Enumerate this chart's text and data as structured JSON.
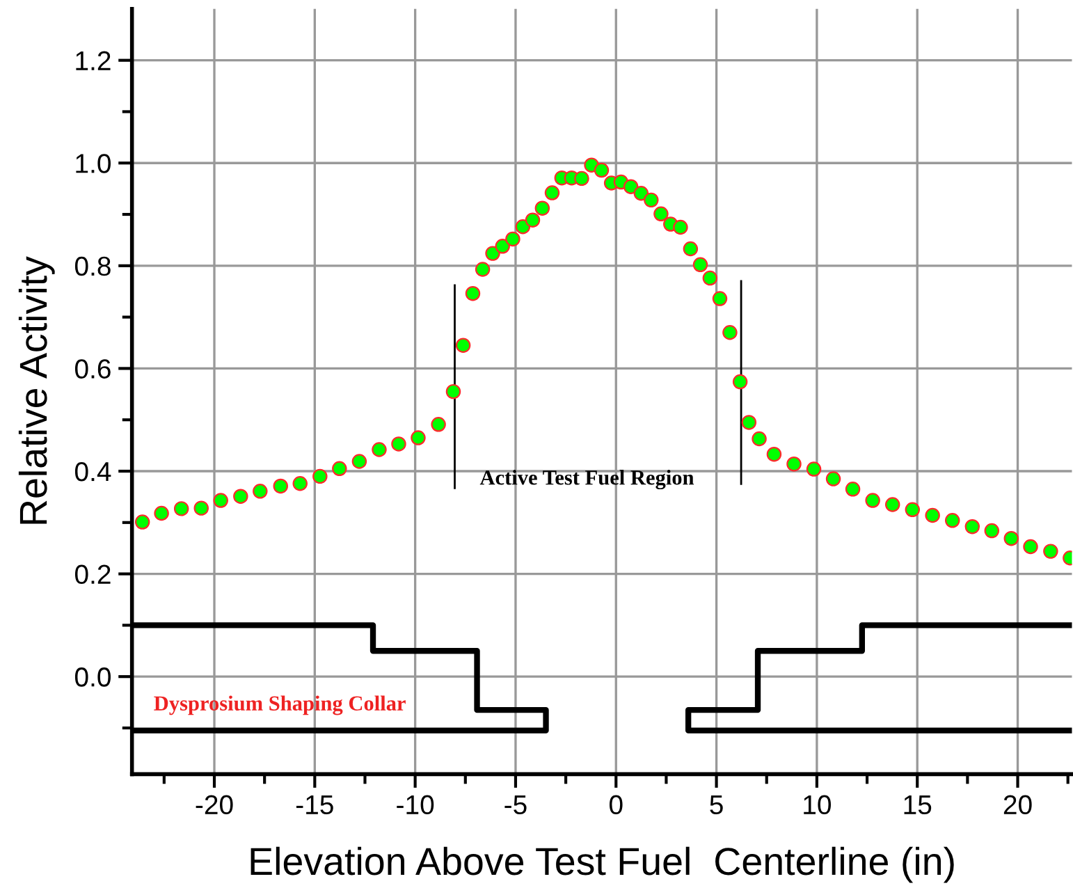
{
  "chart_data": {
    "type": "scatter",
    "xlabel": "Elevation Above Test Fuel  Centerline (in)",
    "ylabel": "Relative Activity",
    "xlim": [
      -24.1,
      22.7
    ],
    "ylim": [
      -0.19,
      1.3
    ],
    "xticks": [
      {
        "value": -22.5,
        "label": null
      },
      -20,
      {
        "value": -17.5,
        "label": null
      },
      -15,
      {
        "value": -12.5,
        "label": null
      },
      -10,
      {
        "value": -7.5,
        "label": null
      },
      -5,
      {
        "value": -2.5,
        "label": null
      },
      0,
      {
        "value": 2.5,
        "label": null
      },
      5,
      {
        "value": 7.5,
        "label": null
      },
      10,
      {
        "value": 12.5,
        "label": null
      },
      15,
      {
        "value": 17.5,
        "label": null
      },
      20,
      {
        "value": 22.5,
        "label": null
      }
    ],
    "yticks": [
      {
        "value": -0.1,
        "label": null
      },
      {
        "value": 0,
        "label": "0.0"
      },
      {
        "value": 0.1,
        "label": null
      },
      0.2,
      {
        "value": 0.3,
        "label": null
      },
      0.4,
      {
        "value": 0.5,
        "label": null
      },
      0.6,
      {
        "value": 0.7,
        "label": null
      },
      0.8,
      {
        "value": 0.9,
        "label": null
      },
      {
        "value": 1,
        "label": "1.0"
      },
      {
        "value": 1.1,
        "label": null
      },
      1.2
    ],
    "grid": true,
    "marker": "circle",
    "series": [
      {
        "color": "#00ff00",
        "x": [
          -23.58,
          -22.63,
          -21.64,
          -20.65,
          -19.68,
          -18.69,
          -17.72,
          -16.7,
          -15.73,
          -14.74,
          -13.77,
          -12.78,
          -11.79,
          -10.82,
          -9.85,
          -8.84,
          -8.1,
          -7.61,
          -7.13,
          -6.64,
          -6.14,
          -5.65,
          -5.14,
          -4.64,
          -4.15,
          -3.67,
          -3.18,
          -2.7,
          -2.21,
          -1.71,
          -1.22,
          -0.72,
          -0.23,
          0.25,
          0.74,
          1.25,
          1.75,
          2.24,
          2.72,
          3.21,
          3.71,
          4.2,
          4.68,
          5.17,
          5.67,
          6.18,
          6.62,
          7.13,
          7.87,
          8.86,
          9.85,
          10.82,
          11.79,
          12.78,
          13.77,
          14.76,
          15.76,
          16.75,
          17.74,
          18.71,
          19.68,
          20.64,
          21.64,
          22.61
        ],
        "values": [
          0.301,
          0.318,
          0.327,
          0.328,
          0.343,
          0.351,
          0.361,
          0.371,
          0.376,
          0.39,
          0.405,
          0.419,
          0.442,
          0.453,
          0.465,
          0.491,
          0.555,
          0.645,
          0.746,
          0.793,
          0.824,
          0.838,
          0.852,
          0.876,
          0.889,
          0.912,
          0.942,
          0.971,
          0.971,
          0.97,
          0.996,
          0.986,
          0.961,
          0.963,
          0.954,
          0.941,
          0.928,
          0.901,
          0.881,
          0.875,
          0.833,
          0.802,
          0.776,
          0.736,
          0.67,
          0.574,
          0.495,
          0.463,
          0.433,
          0.414,
          0.404,
          0.385,
          0.365,
          0.343,
          0.335,
          0.325,
          0.314,
          0.304,
          0.292,
          0.284,
          0.269,
          0.253,
          0.244,
          0.231
        ]
      },
      {
        "type": "line",
        "color": "#000000",
        "marker": "none",
        "x": [
          -8.03,
          -8.03
        ],
        "values": [
          0.367,
          0.762
        ]
      },
      {
        "type": "line",
        "color": "#000000",
        "marker": "none",
        "x": [
          6.23,
          6.23
        ],
        "values": [
          0.375,
          0.77
        ]
      },
      {
        "type": "line",
        "color": "#000000",
        "marker": "none",
        "x": [
          -24.1,
          -12.1,
          -12.1,
          -6.92,
          -6.92,
          -3.49,
          -3.49,
          -24.1
        ],
        "values": [
          0.1,
          0.1,
          0.05,
          0.05,
          -0.065,
          -0.065,
          -0.105,
          -0.105
        ]
      },
      {
        "type": "line",
        "color": "#000000",
        "marker": "none",
        "x": [
          22.7,
          12.25,
          12.25,
          7.06,
          7.06,
          3.6,
          3.6,
          22.7
        ],
        "values": [
          0.1,
          0.1,
          0.05,
          0.05,
          -0.065,
          -0.065,
          -0.105,
          -0.105
        ]
      }
    ],
    "annotations": [
      "Active Test Fuel Region",
      "Dysprosium Shaping Collar"
    ]
  }
}
